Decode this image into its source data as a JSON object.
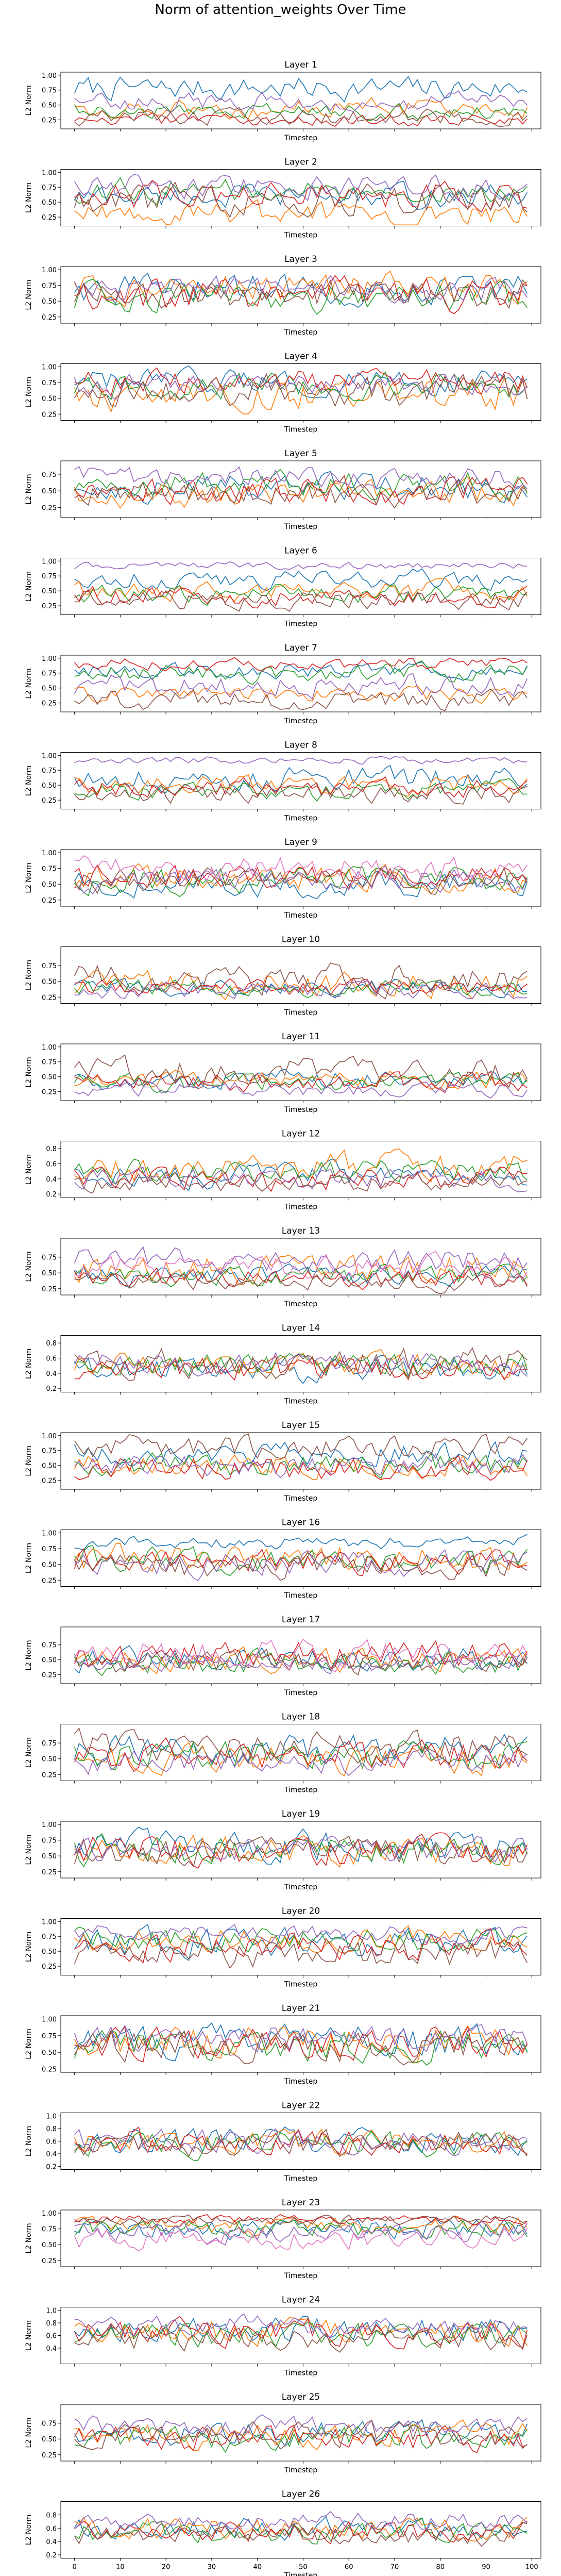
{
  "figure": {
    "title": "Norm of attention_weights Over Time"
  },
  "chart_data": {
    "type": "line",
    "layout": "vertical small multiples",
    "shared_x": true,
    "xlabel": "Timestep",
    "ylabel": "L2 Norm",
    "xlim": [
      -3,
      102
    ],
    "x_ticks": [
      0,
      10,
      20,
      30,
      40,
      50,
      60,
      70,
      80,
      90,
      100
    ],
    "x_tick_labels_shown_on": "last panel only",
    "grid": false,
    "legend": "none",
    "series_colors": [
      "#1f77b4",
      "#ff7f0e",
      "#2ca02c",
      "#d62728",
      "#9467bd",
      "#8c564b",
      "#e377c2"
    ],
    "n_points_per_series": 100,
    "panels": [
      {
        "title": "Layer 1",
        "ylim": [
          0.1,
          1.05
        ],
        "y_ticks": [
          0.25,
          0.5,
          0.75,
          1.0
        ],
        "y_tick_labels": [
          "0.25",
          "0.50",
          "0.75",
          "1.00"
        ],
        "series_count": 6,
        "series_base": [
          0.78,
          0.45,
          0.4,
          0.25,
          0.55,
          0.3
        ],
        "series_amp": [
          0.15,
          0.12,
          0.1,
          0.08,
          0.12,
          0.1
        ]
      },
      {
        "title": "Layer 2",
        "ylim": [
          0.1,
          1.05
        ],
        "y_ticks": [
          0.25,
          0.5,
          0.75,
          1.0
        ],
        "y_tick_labels": [
          "0.25",
          "0.50",
          "0.75",
          "1.00"
        ],
        "series_count": 6,
        "series_base": [
          0.6,
          0.3,
          0.7,
          0.6,
          0.75,
          0.55
        ],
        "series_amp": [
          0.15,
          0.15,
          0.15,
          0.18,
          0.15,
          0.2
        ]
      },
      {
        "title": "Layer 3",
        "ylim": [
          0.15,
          1.05
        ],
        "y_ticks": [
          0.25,
          0.5,
          0.75,
          1.0
        ],
        "y_tick_labels": [
          "0.25",
          "0.50",
          "0.75",
          "1.00"
        ],
        "series_count": 6,
        "series_base": [
          0.7,
          0.7,
          0.55,
          0.6,
          0.7,
          0.6
        ],
        "series_amp": [
          0.18,
          0.18,
          0.18,
          0.2,
          0.15,
          0.2
        ]
      },
      {
        "title": "Layer 4",
        "ylim": [
          0.15,
          1.05
        ],
        "y_ticks": [
          0.25,
          0.5,
          0.75,
          1.0
        ],
        "y_tick_labels": [
          "0.25",
          "0.50",
          "0.75",
          "1.00"
        ],
        "series_count": 6,
        "series_base": [
          0.75,
          0.55,
          0.7,
          0.75,
          0.7,
          0.6
        ],
        "series_amp": [
          0.15,
          0.2,
          0.15,
          0.15,
          0.15,
          0.2
        ]
      },
      {
        "title": "Layer 5",
        "ylim": [
          0.1,
          0.95
        ],
        "y_ticks": [
          0.25,
          0.5,
          0.75
        ],
        "y_tick_labels": [
          "0.25",
          "0.50",
          "0.75"
        ],
        "series_count": 6,
        "series_base": [
          0.55,
          0.45,
          0.6,
          0.5,
          0.7,
          0.45
        ],
        "series_amp": [
          0.15,
          0.15,
          0.15,
          0.15,
          0.12,
          0.15
        ]
      },
      {
        "title": "Layer 6",
        "ylim": [
          0.1,
          1.05
        ],
        "y_ticks": [
          0.25,
          0.5,
          0.75,
          1.0
        ],
        "y_tick_labels": [
          "0.25",
          "0.50",
          "0.75",
          "1.00"
        ],
        "series_count": 6,
        "series_base": [
          0.7,
          0.5,
          0.45,
          0.4,
          0.92,
          0.35
        ],
        "series_amp": [
          0.12,
          0.12,
          0.12,
          0.12,
          0.05,
          0.12
        ]
      },
      {
        "title": "Layer 7",
        "ylim": [
          0.1,
          1.05
        ],
        "y_ticks": [
          0.25,
          0.5,
          0.75,
          1.0
        ],
        "y_tick_labels": [
          "0.25",
          "0.50",
          "0.75",
          "1.00"
        ],
        "series_count": 6,
        "series_base": [
          0.8,
          0.4,
          0.75,
          0.9,
          0.55,
          0.3
        ],
        "series_amp": [
          0.1,
          0.1,
          0.12,
          0.08,
          0.15,
          0.12
        ]
      },
      {
        "title": "Layer 8",
        "ylim": [
          0.1,
          1.05
        ],
        "y_ticks": [
          0.25,
          0.5,
          0.75,
          1.0
        ],
        "y_tick_labels": [
          "0.25",
          "0.50",
          "0.75",
          "1.00"
        ],
        "series_count": 6,
        "series_base": [
          0.6,
          0.5,
          0.4,
          0.45,
          0.92,
          0.35
        ],
        "series_amp": [
          0.15,
          0.12,
          0.12,
          0.12,
          0.05,
          0.12
        ]
      },
      {
        "title": "Layer 9",
        "ylim": [
          0.15,
          1.05
        ],
        "y_ticks": [
          0.25,
          0.5,
          0.75,
          1.0
        ],
        "y_tick_labels": [
          "0.25",
          "0.50",
          "0.75",
          "1.00"
        ],
        "series_count": 7,
        "series_base": [
          0.5,
          0.6,
          0.55,
          0.6,
          0.55,
          0.55,
          0.75
        ],
        "series_amp": [
          0.15,
          0.15,
          0.15,
          0.15,
          0.15,
          0.15,
          0.15
        ]
      },
      {
        "title": "Layer 10",
        "ylim": [
          0.15,
          1.05
        ],
        "y_ticks": [
          0.25,
          0.5,
          0.75
        ],
        "y_tick_labels": [
          "0.25",
          "0.50",
          "0.75"
        ],
        "series_count": 6,
        "series_base": [
          0.4,
          0.45,
          0.4,
          0.4,
          0.35,
          0.55
        ],
        "series_amp": [
          0.1,
          0.15,
          0.1,
          0.1,
          0.1,
          0.18
        ]
      },
      {
        "title": "Layer 11",
        "ylim": [
          0.1,
          1.05
        ],
        "y_ticks": [
          0.25,
          0.5,
          0.75,
          1.0
        ],
        "y_tick_labels": [
          "0.25",
          "0.50",
          "0.75",
          "1.00"
        ],
        "series_count": 6,
        "series_base": [
          0.45,
          0.45,
          0.4,
          0.4,
          0.3,
          0.6
        ],
        "series_amp": [
          0.12,
          0.12,
          0.12,
          0.12,
          0.1,
          0.18
        ]
      },
      {
        "title": "Layer 12",
        "ylim": [
          0.15,
          0.9
        ],
        "y_ticks": [
          0.2,
          0.4,
          0.6,
          0.8
        ],
        "y_tick_labels": [
          "0.2",
          "0.4",
          "0.6",
          "0.8"
        ],
        "series_count": 6,
        "series_base": [
          0.45,
          0.55,
          0.5,
          0.4,
          0.4,
          0.35
        ],
        "series_amp": [
          0.12,
          0.15,
          0.12,
          0.12,
          0.1,
          0.1
        ]
      },
      {
        "title": "Layer 13",
        "ylim": [
          0.15,
          1.05
        ],
        "y_ticks": [
          0.25,
          0.5,
          0.75
        ],
        "y_tick_labels": [
          "0.25",
          "0.50",
          "0.75"
        ],
        "series_count": 7,
        "series_base": [
          0.45,
          0.55,
          0.45,
          0.4,
          0.7,
          0.35,
          0.6
        ],
        "series_amp": [
          0.12,
          0.18,
          0.12,
          0.12,
          0.15,
          0.1,
          0.15
        ]
      },
      {
        "title": "Layer 14",
        "ylim": [
          0.15,
          0.9
        ],
        "y_ticks": [
          0.2,
          0.4,
          0.6,
          0.8
        ],
        "y_tick_labels": [
          "0.2",
          "0.4",
          "0.6",
          "0.8"
        ],
        "series_count": 6,
        "series_base": [
          0.45,
          0.5,
          0.5,
          0.45,
          0.55,
          0.55
        ],
        "series_amp": [
          0.12,
          0.12,
          0.12,
          0.12,
          0.12,
          0.15
        ]
      },
      {
        "title": "Layer 15",
        "ylim": [
          0.1,
          1.05
        ],
        "y_ticks": [
          0.25,
          0.5,
          0.75,
          1.0
        ],
        "y_tick_labels": [
          "0.25",
          "0.50",
          "0.75",
          "1.00"
        ],
        "series_count": 6,
        "series_base": [
          0.7,
          0.5,
          0.5,
          0.45,
          0.5,
          0.8
        ],
        "series_amp": [
          0.15,
          0.15,
          0.15,
          0.15,
          0.15,
          0.15
        ]
      },
      {
        "title": "Layer 16",
        "ylim": [
          0.15,
          1.05
        ],
        "y_ticks": [
          0.25,
          0.5,
          0.75,
          1.0
        ],
        "y_tick_labels": [
          "0.25",
          "0.50",
          "0.75",
          "1.00"
        ],
        "series_count": 6,
        "series_base": [
          0.85,
          0.6,
          0.55,
          0.55,
          0.5,
          0.45
        ],
        "series_amp": [
          0.08,
          0.18,
          0.15,
          0.15,
          0.15,
          0.15
        ]
      },
      {
        "title": "Layer 17",
        "ylim": [
          0.1,
          1.05
        ],
        "y_ticks": [
          0.25,
          0.5,
          0.75
        ],
        "y_tick_labels": [
          "0.25",
          "0.50",
          "0.75"
        ],
        "series_count": 7,
        "series_base": [
          0.5,
          0.5,
          0.45,
          0.55,
          0.45,
          0.45,
          0.6
        ],
        "series_amp": [
          0.15,
          0.15,
          0.15,
          0.18,
          0.12,
          0.15,
          0.18
        ]
      },
      {
        "title": "Layer 18",
        "ylim": [
          0.15,
          1.05
        ],
        "y_ticks": [
          0.25,
          0.5,
          0.75
        ],
        "y_tick_labels": [
          "0.25",
          "0.50",
          "0.75"
        ],
        "series_count": 6,
        "series_base": [
          0.65,
          0.5,
          0.55,
          0.55,
          0.45,
          0.7
        ],
        "series_amp": [
          0.18,
          0.18,
          0.18,
          0.18,
          0.15,
          0.18
        ]
      },
      {
        "title": "Layer 19",
        "ylim": [
          0.15,
          1.05
        ],
        "y_ticks": [
          0.25,
          0.5,
          0.75,
          1.0
        ],
        "y_tick_labels": [
          "0.25",
          "0.50",
          "0.75",
          "1.00"
        ],
        "series_count": 6,
        "series_base": [
          0.65,
          0.6,
          0.55,
          0.6,
          0.6,
          0.55
        ],
        "series_amp": [
          0.18,
          0.18,
          0.18,
          0.18,
          0.15,
          0.18
        ]
      },
      {
        "title": "Layer 20",
        "ylim": [
          0.1,
          1.05
        ],
        "y_ticks": [
          0.25,
          0.5,
          0.75,
          1.0
        ],
        "y_tick_labels": [
          "0.25",
          "0.50",
          "0.75",
          "1.00"
        ],
        "series_count": 6,
        "series_base": [
          0.65,
          0.7,
          0.7,
          0.6,
          0.8,
          0.45
        ],
        "series_amp": [
          0.18,
          0.15,
          0.15,
          0.18,
          0.12,
          0.18
        ]
      },
      {
        "title": "Layer 21",
        "ylim": [
          0.2,
          1.05
        ],
        "y_ticks": [
          0.25,
          0.5,
          0.75,
          1.0
        ],
        "y_tick_labels": [
          "0.25",
          "0.50",
          "0.75",
          "1.00"
        ],
        "series_count": 6,
        "series_base": [
          0.65,
          0.65,
          0.6,
          0.65,
          0.7,
          0.6
        ],
        "series_amp": [
          0.18,
          0.18,
          0.18,
          0.18,
          0.15,
          0.18
        ]
      },
      {
        "title": "Layer 22",
        "ylim": [
          0.15,
          1.05
        ],
        "y_ticks": [
          0.2,
          0.4,
          0.6,
          0.8,
          1.0
        ],
        "y_tick_labels": [
          "0.2",
          "0.4",
          "0.6",
          "0.8",
          "1.0"
        ],
        "series_count": 6,
        "series_base": [
          0.6,
          0.6,
          0.55,
          0.6,
          0.6,
          0.55
        ],
        "series_amp": [
          0.15,
          0.15,
          0.15,
          0.15,
          0.15,
          0.15
        ]
      },
      {
        "title": "Layer 23",
        "ylim": [
          0.15,
          1.05
        ],
        "y_ticks": [
          0.25,
          0.5,
          0.75,
          1.0
        ],
        "y_tick_labels": [
          "0.25",
          "0.50",
          "0.75",
          "1.00"
        ],
        "series_count": 7,
        "series_base": [
          0.75,
          0.8,
          0.75,
          0.9,
          0.7,
          0.9,
          0.6
        ],
        "series_amp": [
          0.12,
          0.1,
          0.12,
          0.06,
          0.12,
          0.06,
          0.15
        ]
      },
      {
        "title": "Layer 24",
        "ylim": [
          0.15,
          1.05
        ],
        "y_ticks": [
          0.4,
          0.6,
          0.8,
          1.0
        ],
        "y_tick_labels": [
          "0.4",
          "0.6",
          "0.8",
          "1.0"
        ],
        "series_count": 6,
        "series_base": [
          0.7,
          0.65,
          0.6,
          0.65,
          0.75,
          0.55
        ],
        "series_amp": [
          0.15,
          0.15,
          0.15,
          0.15,
          0.12,
          0.15
        ]
      },
      {
        "title": "Layer 25",
        "ylim": [
          0.15,
          1.05
        ],
        "y_ticks": [
          0.25,
          0.5,
          0.75
        ],
        "y_tick_labels": [
          "0.25",
          "0.50",
          "0.75"
        ],
        "series_count": 6,
        "series_base": [
          0.6,
          0.55,
          0.5,
          0.5,
          0.7,
          0.55
        ],
        "series_amp": [
          0.15,
          0.15,
          0.15,
          0.15,
          0.12,
          0.15
        ]
      },
      {
        "title": "Layer 26",
        "ylim": [
          0.15,
          1.0
        ],
        "y_ticks": [
          0.2,
          0.4,
          0.6,
          0.8
        ],
        "y_tick_labels": [
          "0.2",
          "0.4",
          "0.6",
          "0.8"
        ],
        "series_count": 6,
        "series_base": [
          0.6,
          0.6,
          0.55,
          0.55,
          0.7,
          0.5
        ],
        "series_amp": [
          0.12,
          0.12,
          0.12,
          0.12,
          0.1,
          0.12
        ]
      }
    ]
  }
}
